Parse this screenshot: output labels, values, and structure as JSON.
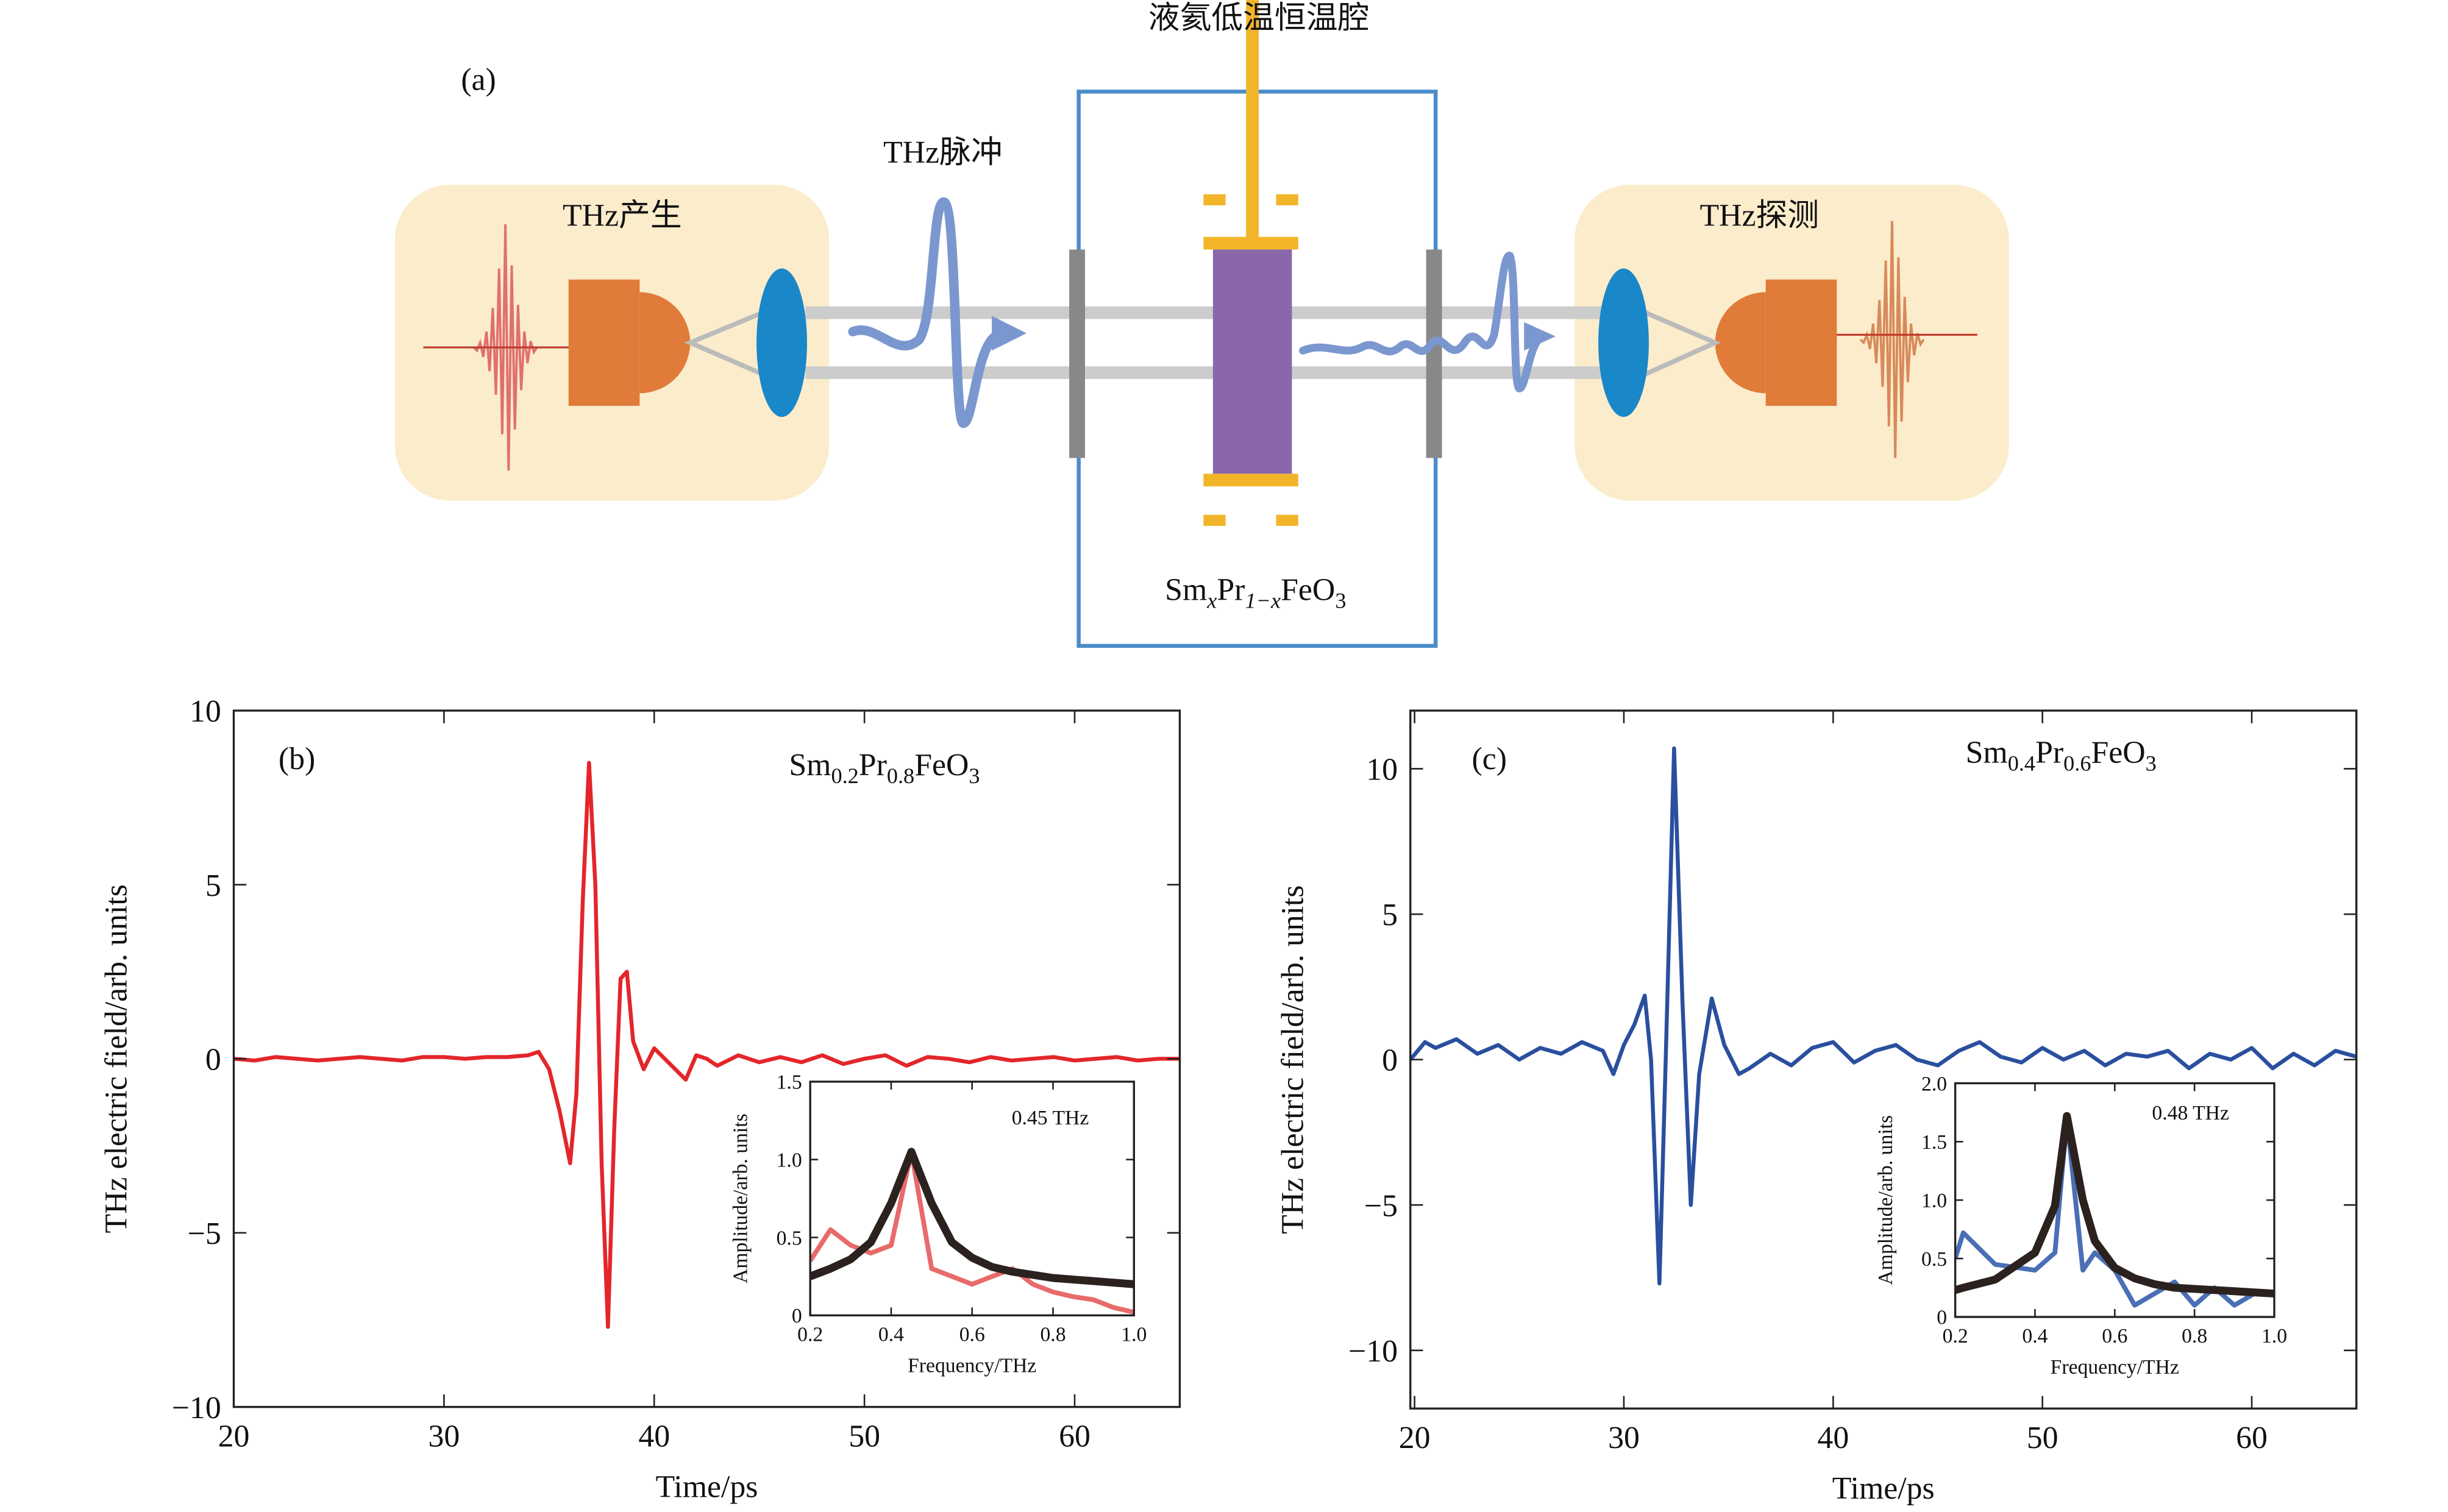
{
  "diagram": {
    "panel_label": "(a)",
    "cryostat": "液氦低温恒温腔",
    "pulse": "THz脉冲",
    "source": "THz产生",
    "detector": "THz探测",
    "sample": [
      "Sm",
      "x",
      "Pr",
      "1−x",
      "FeO",
      "3"
    ]
  },
  "chart_data": [
    {
      "type": "line",
      "panel_label": "(b)",
      "annotation": [
        "Sm",
        "0.2",
        "Pr",
        "0.8",
        "FeO",
        "3"
      ],
      "xlabel": "Time/ps",
      "ylabel": "THz electric field/arb. units",
      "xlim": [
        20,
        65
      ],
      "ylim": [
        -10,
        10
      ],
      "xticks": [
        20,
        30,
        40,
        50,
        60
      ],
      "yticks": [
        {
          "value": -10,
          "label": "−10"
        },
        {
          "value": -5,
          "label": "−5"
        },
        0,
        5,
        10
      ],
      "x": [
        20,
        21,
        22,
        23,
        24,
        25,
        26,
        27,
        28,
        29,
        30,
        31,
        32,
        33,
        34,
        34.5,
        35,
        35.5,
        36,
        36.3,
        36.6,
        36.9,
        37.2,
        37.5,
        37.8,
        38.1,
        38.4,
        38.7,
        39,
        39.5,
        40,
        40.5,
        41,
        41.5,
        42,
        42.5,
        43,
        44,
        45,
        46,
        47,
        48,
        49,
        50,
        51,
        52,
        53,
        54,
        55,
        56,
        57,
        58,
        59,
        60,
        61,
        62,
        63,
        64,
        65
      ],
      "series": [
        {
          "color": "#e3262b",
          "values": [
            0,
            -0.05,
            0.05,
            0,
            -0.05,
            0,
            0.05,
            0,
            -0.05,
            0.05,
            0.05,
            0,
            0.05,
            0.05,
            0.1,
            0.2,
            -0.3,
            -1.5,
            -3.0,
            -1.0,
            4.5,
            8.5,
            5.0,
            -3.0,
            -7.7,
            -2.0,
            2.3,
            2.5,
            0.5,
            -0.3,
            0.3,
            0,
            -0.3,
            -0.6,
            0.1,
            0,
            -0.2,
            0.1,
            -0.1,
            0.05,
            -0.1,
            0.1,
            -0.15,
            0,
            0.1,
            -0.2,
            0.05,
            0,
            -0.1,
            0.05,
            -0.05,
            0,
            0.05,
            -0.05,
            0,
            0.05,
            -0.05,
            0,
            0
          ]
        }
      ]
    },
    {
      "type": "line",
      "panel_label": "(c)",
      "annotation": [
        "Sm",
        "0.4",
        "Pr",
        "0.6",
        "FeO",
        "3"
      ],
      "xlabel": "Time/ps",
      "ylabel": "THz electric field/arb. units",
      "xlim": [
        19.8,
        65
      ],
      "ylim": [
        -12,
        12
      ],
      "xticks": [
        20,
        30,
        40,
        50,
        60
      ],
      "yticks": [
        {
          "value": -10,
          "label": "−10"
        },
        {
          "value": -5,
          "label": "−5"
        },
        0,
        5,
        10
      ],
      "x": [
        19.8,
        20.5,
        21,
        22,
        23,
        24,
        25,
        26,
        27,
        28,
        29,
        29.5,
        30,
        30.5,
        31,
        31.3,
        31.7,
        32,
        32.4,
        32.8,
        33.2,
        33.6,
        34.2,
        34.8,
        35.5,
        36,
        37,
        38,
        39,
        40,
        41,
        42,
        43,
        44,
        45,
        46,
        47,
        48,
        49,
        50,
        51,
        52,
        53,
        54,
        55,
        56,
        57,
        58,
        59,
        60,
        61,
        62,
        63,
        64,
        65
      ],
      "series": [
        {
          "color": "#2a4f9e",
          "values": [
            0,
            0.6,
            0.4,
            0.7,
            0.2,
            0.5,
            0,
            0.4,
            0.2,
            0.6,
            0.3,
            -0.5,
            0.5,
            1.2,
            2.2,
            0,
            -7.7,
            0,
            10.7,
            2,
            -5.0,
            -0.5,
            2.1,
            0.5,
            -0.5,
            -0.3,
            0.2,
            -0.2,
            0.4,
            0.6,
            -0.1,
            0.3,
            0.5,
            0,
            -0.2,
            0.3,
            0.6,
            0.1,
            -0.1,
            0.4,
            0,
            0.3,
            -0.2,
            0.2,
            0.1,
            0.3,
            -0.3,
            0.2,
            0,
            0.4,
            -0.3,
            0.2,
            -0.2,
            0.3,
            0.1
          ]
        }
      ]
    },
    {
      "type": "line",
      "annotation": "0.45 THz",
      "xlabel": "Frequency/THz",
      "ylabel": "Amplitude/arb. units",
      "xlim": [
        0.2,
        1
      ],
      "ylim": [
        0,
        1.5
      ],
      "xticks": [
        0.2,
        0.4,
        0.6,
        0.8,
        {
          "value": 1,
          "label": "1.0"
        }
      ],
      "yticks": [
        0,
        0.5,
        {
          "value": 1,
          "label": "1.0"
        },
        1.5
      ],
      "x": [
        0.2,
        0.25,
        0.3,
        0.35,
        0.4,
        0.45,
        0.5,
        0.55,
        0.6,
        0.65,
        0.7,
        0.75,
        0.8,
        0.85,
        0.9,
        0.95,
        1
      ],
      "series": [
        {
          "color": "#e86a6a",
          "values": [
            0.35,
            0.55,
            0.45,
            0.4,
            0.45,
            1.05,
            0.3,
            0.25,
            0.2,
            0.25,
            0.3,
            0.2,
            0.15,
            0.12,
            0.1,
            0.05,
            0.02
          ]
        },
        {
          "color": "#2b2220",
          "values": [
            0.25,
            0.3,
            0.36,
            0.47,
            0.72,
            1.05,
            0.72,
            0.47,
            0.37,
            0.31,
            0.28,
            0.26,
            0.24,
            0.23,
            0.22,
            0.21,
            0.2
          ]
        }
      ]
    },
    {
      "type": "line",
      "annotation": "0.48 THz",
      "xlabel": "Frequency/THz",
      "ylabel": "Amplitude/arb. units",
      "xlim": [
        0.2,
        1
      ],
      "ylim": [
        0,
        2
      ],
      "xticks": [
        0.2,
        0.4,
        0.6,
        0.8,
        {
          "value": 1,
          "label": "1.0"
        }
      ],
      "yticks": [
        0,
        0.5,
        {
          "value": 1,
          "label": "1.0"
        },
        1.5,
        {
          "value": 2,
          "label": "2.0"
        }
      ],
      "x": [
        0.2,
        0.22,
        0.3,
        0.4,
        0.45,
        0.48,
        0.52,
        0.55,
        0.6,
        0.65,
        0.7,
        0.75,
        0.8,
        0.85,
        0.9,
        0.95,
        1
      ],
      "series": [
        {
          "color": "#4a6fb5",
          "values": [
            0.5,
            0.72,
            0.45,
            0.4,
            0.55,
            1.7,
            0.4,
            0.55,
            0.4,
            0.1,
            0.2,
            0.3,
            0.1,
            0.25,
            0.1,
            0.2,
            0.2
          ]
        },
        {
          "color": "#2b2220",
          "values": [
            0.23,
            0.25,
            0.32,
            0.55,
            0.95,
            1.72,
            1.0,
            0.65,
            0.42,
            0.33,
            0.28,
            0.25,
            0.24,
            0.23,
            0.22,
            0.21,
            0.2
          ]
        }
      ]
    }
  ]
}
